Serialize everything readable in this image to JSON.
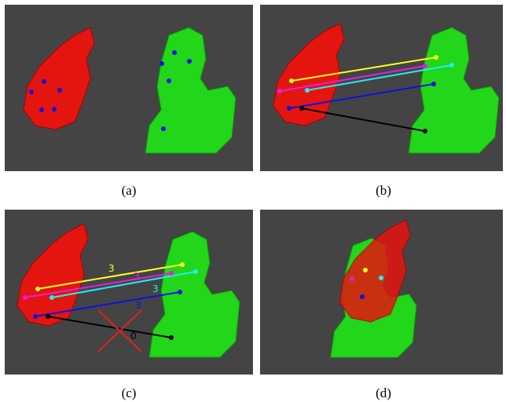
{
  "panels": [
    {
      "caption": "(a)"
    },
    {
      "caption": "(b)"
    },
    {
      "caption": "(c)",
      "match_labels": [
        "3",
        "3",
        "3",
        "3",
        "0"
      ]
    },
    {
      "caption": "(d)"
    }
  ]
}
